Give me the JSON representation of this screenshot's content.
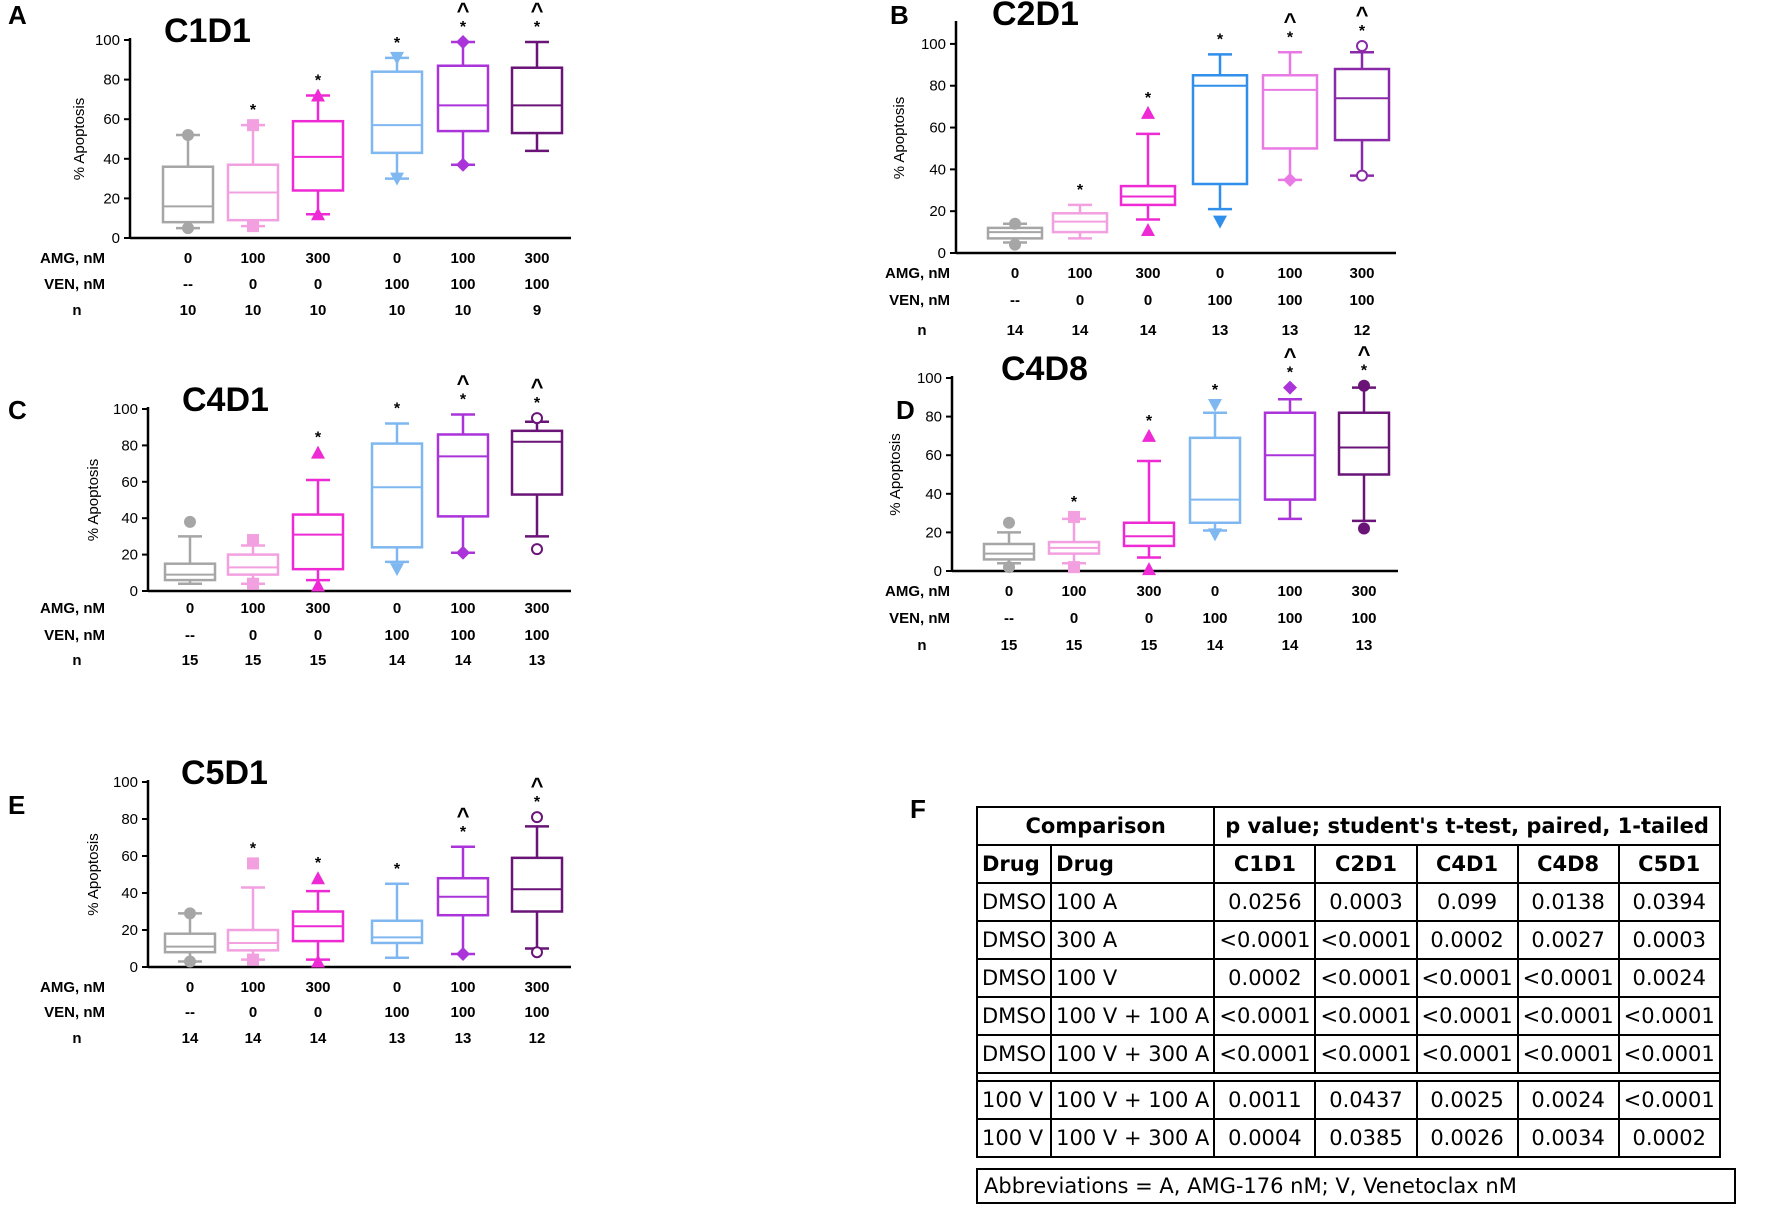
{
  "chart_data": [
    {
      "panel": "A",
      "title": "C1D1",
      "type": "box",
      "ylabel": "% Apoptosis",
      "ylim": [
        0,
        100
      ],
      "yticks": [
        0,
        20,
        40,
        60,
        80,
        100
      ],
      "row_labels": {
        "amg": "AMG, nM",
        "ven": "VEN, nM",
        "n": "n"
      },
      "groups": [
        {
          "amg": "0",
          "ven": "--",
          "n": "10",
          "color": "#a6a6a6",
          "marker": "circle",
          "min": 5,
          "q1": 8,
          "median": 16,
          "q3": 36,
          "max": 52,
          "outliers": [
            52,
            5
          ],
          "star": "",
          "caret": ""
        },
        {
          "amg": "100",
          "ven": "0",
          "n": "10",
          "color": "#f2a0e0",
          "marker": "square",
          "min": 6,
          "q1": 9,
          "median": 23,
          "q3": 37,
          "max": 57,
          "outliers": [
            57,
            6
          ],
          "star": "*",
          "caret": ""
        },
        {
          "amg": "300",
          "ven": "0",
          "n": "10",
          "color": "#ee2ad4",
          "marker": "triangle",
          "min": 12,
          "q1": 24,
          "median": 41,
          "q3": 59,
          "max": 72,
          "outliers": [
            72,
            12
          ],
          "star": "*",
          "caret": ""
        },
        {
          "amg": "0",
          "ven": "100",
          "n": "10",
          "color": "#7fb7f0",
          "marker": "triangle-down",
          "min": 30,
          "q1": 43,
          "median": 57,
          "q3": 84,
          "max": 91,
          "outliers": [
            91,
            30
          ],
          "star": "*",
          "caret": ""
        },
        {
          "amg": "100",
          "ven": "100",
          "n": "10",
          "color": "#aa33d9",
          "marker": "diamond",
          "min": 37,
          "q1": 54,
          "median": 67,
          "q3": 87,
          "max": 99,
          "outliers": [
            99,
            37
          ],
          "star": "*",
          "caret": "^"
        },
        {
          "amg": "300",
          "ven": "100",
          "n": "9",
          "color": "#6a1478",
          "marker": "none",
          "min": 44,
          "q1": 53,
          "median": 67,
          "q3": 86,
          "max": 99,
          "outliers": [],
          "star": "*",
          "caret": "^"
        }
      ]
    },
    {
      "panel": "B",
      "title": "C2D1",
      "type": "box",
      "ylabel": "% Apoptosis",
      "ylim": [
        0,
        110
      ],
      "yticks": [
        0,
        20,
        40,
        60,
        80,
        100
      ],
      "row_labels": {
        "amg": "AMG, nM",
        "ven": "VEN, nM",
        "n": "n"
      },
      "groups": [
        {
          "amg": "0",
          "ven": "--",
          "n": "14",
          "color": "#a6a6a6",
          "marker": "circle",
          "min": 5,
          "q1": 7,
          "median": 10,
          "q3": 12,
          "max": 14,
          "outliers": [
            14,
            4
          ],
          "star": "",
          "caret": ""
        },
        {
          "amg": "100",
          "ven": "0",
          "n": "14",
          "color": "#f2a0e0",
          "marker": "square",
          "min": 7,
          "q1": 10,
          "median": 15,
          "q3": 19,
          "max": 23,
          "outliers": [],
          "star": "*",
          "caret": ""
        },
        {
          "amg": "300",
          "ven": "0",
          "n": "14",
          "color": "#ee2ad4",
          "marker": "triangle",
          "min": 16,
          "q1": 23,
          "median": 27,
          "q3": 32,
          "max": 57,
          "outliers": [
            67,
            11
          ],
          "star": "*",
          "caret": ""
        },
        {
          "amg": "0",
          "ven": "100",
          "n": "13",
          "color": "#2f8fea",
          "marker": "triangle-down",
          "min": 21,
          "q1": 33,
          "median": 80,
          "q3": 85,
          "max": 95,
          "outliers": [
            15
          ],
          "star": "*",
          "caret": ""
        },
        {
          "amg": "100",
          "ven": "100",
          "n": "13",
          "color": "#e97ae5",
          "marker": "diamond",
          "min": 35,
          "q1": 50,
          "median": 78,
          "q3": 85,
          "max": 96,
          "outliers": [
            35
          ],
          "star": "*",
          "caret": "^"
        },
        {
          "amg": "300",
          "ven": "100",
          "n": "12",
          "color": "#8a2aa8",
          "marker": "ring",
          "min": 37,
          "q1": 54,
          "median": 74,
          "q3": 88,
          "max": 96,
          "outliers": [
            99,
            37
          ],
          "star": "*",
          "caret": "^"
        }
      ]
    },
    {
      "panel": "C",
      "title": "C4D1",
      "type": "box",
      "ylabel": "% Apoptosis",
      "ylim": [
        0,
        100
      ],
      "yticks": [
        0,
        20,
        40,
        60,
        80,
        100
      ],
      "row_labels": {
        "amg": "AMG, nM",
        "ven": "VEN, nM",
        "n": "n"
      },
      "groups": [
        {
          "amg": "0",
          "ven": "--",
          "n": "15",
          "color": "#a6a6a6",
          "marker": "circle",
          "min": 4,
          "q1": 6,
          "median": 9,
          "q3": 15,
          "max": 30,
          "outliers": [
            38
          ],
          "star": "",
          "caret": ""
        },
        {
          "amg": "100",
          "ven": "0",
          "n": "15",
          "color": "#f2a0e0",
          "marker": "square",
          "min": 4,
          "q1": 9,
          "median": 13,
          "q3": 20,
          "max": 25,
          "outliers": [
            28,
            4
          ],
          "star": "",
          "caret": ""
        },
        {
          "amg": "300",
          "ven": "0",
          "n": "15",
          "color": "#ee2ad4",
          "marker": "triangle",
          "min": 6,
          "q1": 12,
          "median": 31,
          "q3": 42,
          "max": 61,
          "outliers": [
            76,
            3
          ],
          "star": "*",
          "caret": ""
        },
        {
          "amg": "0",
          "ven": "100",
          "n": "14",
          "color": "#7fb7f0",
          "marker": "triangle-down",
          "min": 16,
          "q1": 24,
          "median": 57,
          "q3": 81,
          "max": 92,
          "outliers": [
            12
          ],
          "star": "*",
          "caret": ""
        },
        {
          "amg": "100",
          "ven": "100",
          "n": "14",
          "color": "#aa33d9",
          "marker": "diamond",
          "min": 21,
          "q1": 41,
          "median": 74,
          "q3": 86,
          "max": 97,
          "outliers": [
            21
          ],
          "star": "*",
          "caret": "^"
        },
        {
          "amg": "300",
          "ven": "100",
          "n": "13",
          "color": "#6a1478",
          "marker": "ring",
          "min": 30,
          "q1": 53,
          "median": 82,
          "q3": 88,
          "max": 93,
          "outliers": [
            95,
            23
          ],
          "star": "*",
          "caret": "^"
        }
      ]
    },
    {
      "panel": "D",
      "title": "C4D8",
      "type": "box",
      "ylabel": "% Apoptosis",
      "ylim": [
        0,
        100
      ],
      "yticks": [
        0,
        20,
        40,
        60,
        80,
        100
      ],
      "row_labels": {
        "amg": "AMG, nM",
        "ven": "VEN, nM",
        "n": "n"
      },
      "groups": [
        {
          "amg": "0",
          "ven": "--",
          "n": "15",
          "color": "#a6a6a6",
          "marker": "circle",
          "min": 4,
          "q1": 6,
          "median": 9,
          "q3": 14,
          "max": 20,
          "outliers": [
            25,
            2
          ],
          "star": "",
          "caret": ""
        },
        {
          "amg": "100",
          "ven": "0",
          "n": "15",
          "color": "#f2a0e0",
          "marker": "square",
          "min": 4,
          "q1": 9,
          "median": 12,
          "q3": 15,
          "max": 27,
          "outliers": [
            28,
            2
          ],
          "star": "*",
          "caret": ""
        },
        {
          "amg": "300",
          "ven": "0",
          "n": "15",
          "color": "#ee2ad4",
          "marker": "triangle",
          "min": 7,
          "q1": 13,
          "median": 18,
          "q3": 25,
          "max": 57,
          "outliers": [
            70,
            1
          ],
          "star": "*",
          "caret": ""
        },
        {
          "amg": "0",
          "ven": "100",
          "n": "14",
          "color": "#7fb7f0",
          "marker": "triangle-down",
          "min": 21,
          "q1": 25,
          "median": 37,
          "q3": 69,
          "max": 82,
          "outliers": [
            86,
            19
          ],
          "star": "*",
          "caret": ""
        },
        {
          "amg": "100",
          "ven": "100",
          "n": "14",
          "color": "#aa33d9",
          "marker": "diamond",
          "min": 27,
          "q1": 37,
          "median": 60,
          "q3": 82,
          "max": 89,
          "outliers": [
            95
          ],
          "star": "*",
          "caret": "^"
        },
        {
          "amg": "300",
          "ven": "100",
          "n": "13",
          "color": "#6a1478",
          "marker": "dot",
          "min": 26,
          "q1": 50,
          "median": 64,
          "q3": 82,
          "max": 95,
          "outliers": [
            96,
            22
          ],
          "star": "*",
          "caret": "^"
        }
      ]
    },
    {
      "panel": "E",
      "title": "C5D1",
      "type": "box",
      "ylabel": "% Apoptosis",
      "ylim": [
        0,
        100
      ],
      "yticks": [
        0,
        20,
        40,
        60,
        80,
        100
      ],
      "row_labels": {
        "amg": "AMG, nM",
        "ven": "VEN, nM",
        "n": "n"
      },
      "groups": [
        {
          "amg": "0",
          "ven": "--",
          "n": "14",
          "color": "#a6a6a6",
          "marker": "circle",
          "min": 3,
          "q1": 8,
          "median": 11,
          "q3": 18,
          "max": 29,
          "outliers": [
            29,
            3
          ],
          "star": "",
          "caret": ""
        },
        {
          "amg": "100",
          "ven": "0",
          "n": "14",
          "color": "#f2a0e0",
          "marker": "square",
          "min": 4,
          "q1": 9,
          "median": 13,
          "q3": 20,
          "max": 43,
          "outliers": [
            56,
            4
          ],
          "star": "*",
          "caret": ""
        },
        {
          "amg": "300",
          "ven": "0",
          "n": "14",
          "color": "#ee2ad4",
          "marker": "triangle",
          "min": 4,
          "q1": 14,
          "median": 22,
          "q3": 30,
          "max": 41,
          "outliers": [
            48,
            3
          ],
          "star": "*",
          "caret": ""
        },
        {
          "amg": "0",
          "ven": "100",
          "n": "13",
          "color": "#7fb7f0",
          "marker": "triangle-down",
          "min": 5,
          "q1": 13,
          "median": 16,
          "q3": 25,
          "max": 45,
          "outliers": [],
          "star": "*",
          "caret": ""
        },
        {
          "amg": "100",
          "ven": "100",
          "n": "13",
          "color": "#aa33d9",
          "marker": "diamond",
          "min": 7,
          "q1": 28,
          "median": 38,
          "q3": 48,
          "max": 65,
          "outliers": [
            7
          ],
          "star": "*",
          "caret": "^"
        },
        {
          "amg": "300",
          "ven": "100",
          "n": "12",
          "color": "#6a1478",
          "marker": "ring",
          "min": 10,
          "q1": 30,
          "median": 42,
          "q3": 59,
          "max": 76,
          "outliers": [
            81,
            8
          ],
          "star": "*",
          "caret": "^"
        }
      ]
    },
    {
      "panel": "F",
      "type": "table",
      "header_top": [
        "Comparison",
        "p value; student's t-test, paired, 1-tailed"
      ],
      "header": [
        "Drug",
        "Drug",
        "C1D1",
        "C2D1",
        "C4D1",
        "C4D8",
        "C5D1"
      ],
      "rows_group1": [
        [
          "DMSO",
          "100 A",
          "0.0256",
          "0.0003",
          "0.099",
          "0.0138",
          "0.0394"
        ],
        [
          "DMSO",
          "300 A",
          "<0.0001",
          "<0.0001",
          "0.0002",
          "0.0027",
          "0.0003"
        ],
        [
          "DMSO",
          "100 V",
          "0.0002",
          "<0.0001",
          "<0.0001",
          "<0.0001",
          "0.0024"
        ],
        [
          "DMSO",
          "100 V + 100 A",
          "<0.0001",
          "<0.0001",
          "<0.0001",
          "<0.0001",
          "<0.0001"
        ],
        [
          "DMSO",
          "100 V + 300 A",
          "<0.0001",
          "<0.0001",
          "<0.0001",
          "<0.0001",
          "<0.0001"
        ]
      ],
      "rows_group2": [
        [
          "100 V",
          "100 V + 100 A",
          "0.0011",
          "0.0437",
          "0.0025",
          "0.0024",
          "<0.0001"
        ],
        [
          "100 V",
          "100 V + 300 A",
          "0.0004",
          "0.0385",
          "0.0026",
          "0.0034",
          "0.0002"
        ]
      ],
      "abbreviations": "Abbreviations = A, AMG-176 nM; V, Venetoclax nM"
    }
  ],
  "panel_labels": {
    "A": "A",
    "B": "B",
    "C": "C",
    "D": "D",
    "E": "E",
    "F": "F"
  }
}
